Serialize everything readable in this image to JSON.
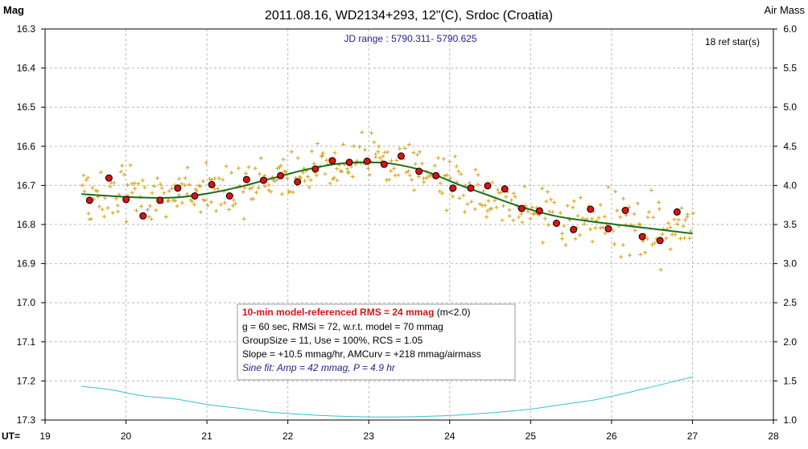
{
  "chart_data": {
    "type": "scatter",
    "title": "2011.08.16, WD2134+293, 12\"(C), Srdoc (Croatia)",
    "subtitle": "JD range : 5790.311- 5790.625",
    "ref_stars": "18 ref star(s)",
    "ylabel_left": "Mag",
    "ylabel_right": "Air Mass",
    "xlabel": "UT=",
    "xlim": [
      19,
      28
    ],
    "ylim": [
      16.3,
      17.3
    ],
    "y2lim": [
      1.0,
      6.0
    ],
    "y_inverted": true,
    "grid": true,
    "x_ticks": [
      "19",
      "20",
      "21",
      "22",
      "23",
      "24",
      "25",
      "26",
      "27",
      "28"
    ],
    "y_ticks": [
      "16.3",
      "16.4",
      "16.5",
      "16.6",
      "16.7",
      "16.8",
      "16.9",
      "17.0",
      "17.1",
      "17.2",
      "17.3"
    ],
    "y2_ticks": [
      "6.0",
      "5.5",
      "5.0",
      "4.5",
      "4.0",
      "3.5",
      "3.0",
      "2.5",
      "2.0",
      "1.5",
      "1.0"
    ],
    "colors": {
      "raw": "#d4a017",
      "binned_fill": "#dd1111",
      "binned_stroke": "#000000",
      "model": "#1a6e1a",
      "airmass": "#33c0d0",
      "title": "#000000",
      "subtitle": "#22228c",
      "grid": "#b8b8b8"
    },
    "binned_points": [
      {
        "x": 19.55,
        "y": 16.738
      },
      {
        "x": 19.79,
        "y": 16.681
      },
      {
        "x": 20.0,
        "y": 16.736
      },
      {
        "x": 20.21,
        "y": 16.778
      },
      {
        "x": 20.42,
        "y": 16.738
      },
      {
        "x": 20.64,
        "y": 16.707
      },
      {
        "x": 20.85,
        "y": 16.727
      },
      {
        "x": 21.06,
        "y": 16.698
      },
      {
        "x": 21.28,
        "y": 16.727
      },
      {
        "x": 21.49,
        "y": 16.685
      },
      {
        "x": 21.7,
        "y": 16.687
      },
      {
        "x": 21.91,
        "y": 16.675
      },
      {
        "x": 22.12,
        "y": 16.691
      },
      {
        "x": 22.34,
        "y": 16.658
      },
      {
        "x": 22.55,
        "y": 16.637
      },
      {
        "x": 22.76,
        "y": 16.641
      },
      {
        "x": 22.98,
        "y": 16.638
      },
      {
        "x": 23.19,
        "y": 16.646
      },
      {
        "x": 23.4,
        "y": 16.625
      },
      {
        "x": 23.62,
        "y": 16.664
      },
      {
        "x": 23.83,
        "y": 16.675
      },
      {
        "x": 24.04,
        "y": 16.707
      },
      {
        "x": 24.26,
        "y": 16.707
      },
      {
        "x": 24.47,
        "y": 16.701
      },
      {
        "x": 24.68,
        "y": 16.709
      },
      {
        "x": 24.89,
        "y": 16.759
      },
      {
        "x": 25.11,
        "y": 16.765
      },
      {
        "x": 25.32,
        "y": 16.797
      },
      {
        "x": 25.53,
        "y": 16.813
      },
      {
        "x": 25.74,
        "y": 16.761
      },
      {
        "x": 25.96,
        "y": 16.811
      },
      {
        "x": 26.17,
        "y": 16.764
      },
      {
        "x": 26.38,
        "y": 16.831
      },
      {
        "x": 26.6,
        "y": 16.841
      },
      {
        "x": 26.81,
        "y": 16.768
      }
    ],
    "model_curve": [
      {
        "x": 19.45,
        "y": 16.722
      },
      {
        "x": 19.8,
        "y": 16.727
      },
      {
        "x": 20.2,
        "y": 16.731
      },
      {
        "x": 20.6,
        "y": 16.731
      },
      {
        "x": 21.0,
        "y": 16.721
      },
      {
        "x": 21.4,
        "y": 16.704
      },
      {
        "x": 21.8,
        "y": 16.682
      },
      {
        "x": 22.2,
        "y": 16.661
      },
      {
        "x": 22.6,
        "y": 16.645
      },
      {
        "x": 23.0,
        "y": 16.641
      },
      {
        "x": 23.3,
        "y": 16.645
      },
      {
        "x": 23.7,
        "y": 16.664
      },
      {
        "x": 24.1,
        "y": 16.697
      },
      {
        "x": 24.5,
        "y": 16.727
      },
      {
        "x": 24.9,
        "y": 16.756
      },
      {
        "x": 25.3,
        "y": 16.778
      },
      {
        "x": 25.7,
        "y": 16.791
      },
      {
        "x": 26.1,
        "y": 16.801
      },
      {
        "x": 26.5,
        "y": 16.811
      },
      {
        "x": 27.0,
        "y": 16.823
      }
    ],
    "airmass_curve": [
      {
        "x": 19.45,
        "y": 1.43
      },
      {
        "x": 19.8,
        "y": 1.39
      },
      {
        "x": 20.2,
        "y": 1.31
      },
      {
        "x": 20.6,
        "y": 1.27
      },
      {
        "x": 21.0,
        "y": 1.2
      },
      {
        "x": 21.4,
        "y": 1.15
      },
      {
        "x": 21.8,
        "y": 1.1
      },
      {
        "x": 22.2,
        "y": 1.07
      },
      {
        "x": 22.6,
        "y": 1.05
      },
      {
        "x": 23.0,
        "y": 1.04
      },
      {
        "x": 23.4,
        "y": 1.04
      },
      {
        "x": 23.8,
        "y": 1.05
      },
      {
        "x": 24.2,
        "y": 1.07
      },
      {
        "x": 24.6,
        "y": 1.1
      },
      {
        "x": 25.0,
        "y": 1.14
      },
      {
        "x": 25.4,
        "y": 1.2
      },
      {
        "x": 25.8,
        "y": 1.26
      },
      {
        "x": 26.2,
        "y": 1.35
      },
      {
        "x": 26.6,
        "y": 1.45
      },
      {
        "x": 27.0,
        "y": 1.55
      }
    ],
    "stats_box": {
      "line1_bold": "10-min model-referenced RMS = 24 mmag",
      "line1_rest": " (m<2.0)",
      "line2": "g = 60 sec, RMSi = 72, w.r.t. model = 70 mmag",
      "line3": "GroupSize = 11, Use = 100%, RCS = 1.05",
      "line4": "Slope = +10.5 mmag/hr, AMCurv = +218 mmag/airmass",
      "line5": "Sine fit: Amp = 42 mmag, P = 4.9 hr"
    }
  }
}
